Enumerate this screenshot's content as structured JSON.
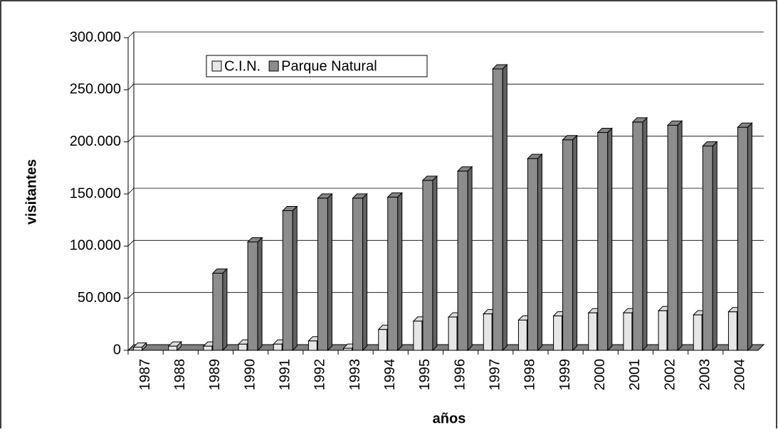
{
  "chart_data": {
    "type": "bar3d",
    "x_label": "años",
    "y_label": "visitantes",
    "categories": [
      "1987",
      "1988",
      "1989",
      "1990",
      "1991",
      "1992",
      "1993",
      "1994",
      "1995",
      "1996",
      "1997",
      "1998",
      "1999",
      "2000",
      "2001",
      "2002",
      "2003",
      "2004"
    ],
    "series": [
      {
        "name": "C.I.N.",
        "color": "#e6e6e6",
        "values": [
          3000,
          4000,
          4000,
          6000,
          6000,
          9000,
          2000,
          20000,
          28000,
          32000,
          35000,
          29000,
          33000,
          36000,
          36000,
          38000,
          34000,
          37000
        ]
      },
      {
        "name": "Parque Natural",
        "color": "#8c8c8c",
        "values": [
          null,
          null,
          74000,
          104000,
          134000,
          146000,
          146000,
          147000,
          163000,
          172000,
          270000,
          184000,
          202000,
          209000,
          219000,
          216000,
          196000,
          214000
        ]
      }
    ],
    "ylim": [
      0,
      300000
    ],
    "yticks": [
      0,
      {
        "value": 50000,
        "label": "50.000"
      },
      {
        "value": 100000,
        "label": "100.000"
      },
      {
        "value": 150000,
        "label": "150.000"
      },
      {
        "value": 200000,
        "label": "200.000"
      },
      {
        "value": 250000,
        "label": "250.000"
      },
      {
        "value": 300000,
        "label": "300.000"
      }
    ],
    "grid": true,
    "legend": "top"
  }
}
